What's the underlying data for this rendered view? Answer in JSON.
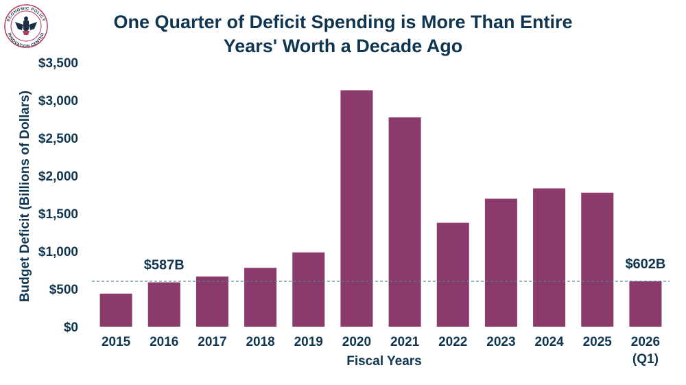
{
  "logo": {
    "text_top": "ECONOMIC POLICY",
    "text_bottom": "INNOVATION CENTER"
  },
  "chart_data": {
    "type": "bar",
    "title_line1": "One Quarter of Deficit Spending is More Than Entire",
    "title_line2": "Years' Worth a Decade Ago",
    "xlabel": "Fiscal Years",
    "ylabel": "Budget Deficit (Billions of Dollars)",
    "categories": [
      "2015",
      "2016",
      "2017",
      "2018",
      "2019",
      "2020",
      "2021",
      "2022",
      "2023",
      "2024",
      "2025",
      "2026"
    ],
    "category_sublabels": [
      "",
      "",
      "",
      "",
      "",
      "",
      "",
      "",
      "",
      "",
      "",
      "(Q1)"
    ],
    "values": [
      438,
      587,
      665,
      779,
      984,
      3132,
      2772,
      1376,
      1695,
      1832,
      1775,
      602
    ],
    "ylim": [
      0,
      3500
    ],
    "yticks": [
      0,
      500,
      1000,
      1500,
      2000,
      2500,
      3000,
      3500
    ],
    "ytick_labels": [
      "$0",
      "$500",
      "$1,000",
      "$1,500",
      "$2,000",
      "$2,500",
      "$3,000",
      "$3,500"
    ],
    "reference_line_value": 602,
    "annotations": [
      {
        "category": "2016",
        "text": "$587B"
      },
      {
        "category": "2026",
        "text": "$602B"
      }
    ],
    "grid": false,
    "colors": {
      "bar": "#8b3a6c",
      "text": "#0f3550",
      "reference_line": "#5a7a8c",
      "logo_accent": "#b03a5a"
    }
  }
}
